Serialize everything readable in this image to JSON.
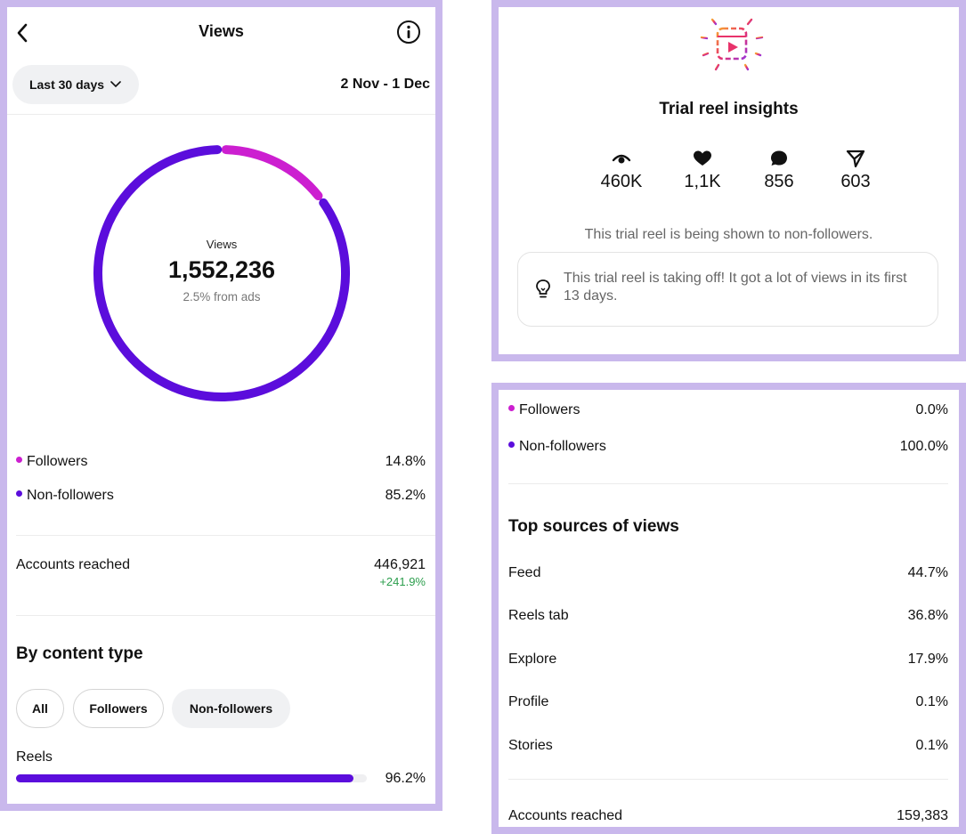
{
  "left": {
    "header": {
      "title": "Views"
    },
    "period_button": {
      "label": "Last 30 days"
    },
    "date_range": "2 Nov - 1 Dec",
    "donut": {
      "label": "Views",
      "total": "1,552,236",
      "ads_note": "2.5% from ads",
      "followers_fraction": 0.148,
      "colors": {
        "followers": "#cc1fd0",
        "non_followers": "#5b0ddc"
      }
    },
    "audience": [
      {
        "label": "Followers",
        "value": "14.8%",
        "color": "#cc1fd0"
      },
      {
        "label": "Non-followers",
        "value": "85.2%",
        "color": "#5b0ddc"
      }
    ],
    "accounts_reached": {
      "label": "Accounts reached",
      "value": "446,921",
      "change": "+241.9%"
    },
    "content_type": {
      "title": "By content type",
      "filters": [
        "All",
        "Followers",
        "Non-followers"
      ],
      "items": [
        {
          "label": "Reels",
          "value": "96.2%",
          "fraction": 0.962
        }
      ]
    }
  },
  "top_right": {
    "title": "Trial reel insights",
    "stats": [
      {
        "icon": "eye-icon",
        "value": "460K"
      },
      {
        "icon": "heart-icon",
        "value": "1,1K"
      },
      {
        "icon": "comment-icon",
        "value": "856"
      },
      {
        "icon": "share-icon",
        "value": "603"
      }
    ],
    "note": "This trial reel is being shown to non-followers.",
    "tip": "This trial reel is taking off! It got a lot of views in its first 13 days."
  },
  "bottom_right": {
    "audience": [
      {
        "label": "Followers",
        "value": "0.0%",
        "color": "#cc1fd0"
      },
      {
        "label": "Non-followers",
        "value": "100.0%",
        "color": "#5b0ddc"
      }
    ],
    "sources_title": "Top sources of views",
    "sources": [
      {
        "label": "Feed",
        "value": "44.7%"
      },
      {
        "label": "Reels tab",
        "value": "36.8%"
      },
      {
        "label": "Explore",
        "value": "17.9%"
      },
      {
        "label": "Profile",
        "value": "0.1%"
      },
      {
        "label": "Stories",
        "value": "0.1%"
      }
    ],
    "accounts_reached": {
      "label": "Accounts reached",
      "value": "159,383"
    }
  }
}
